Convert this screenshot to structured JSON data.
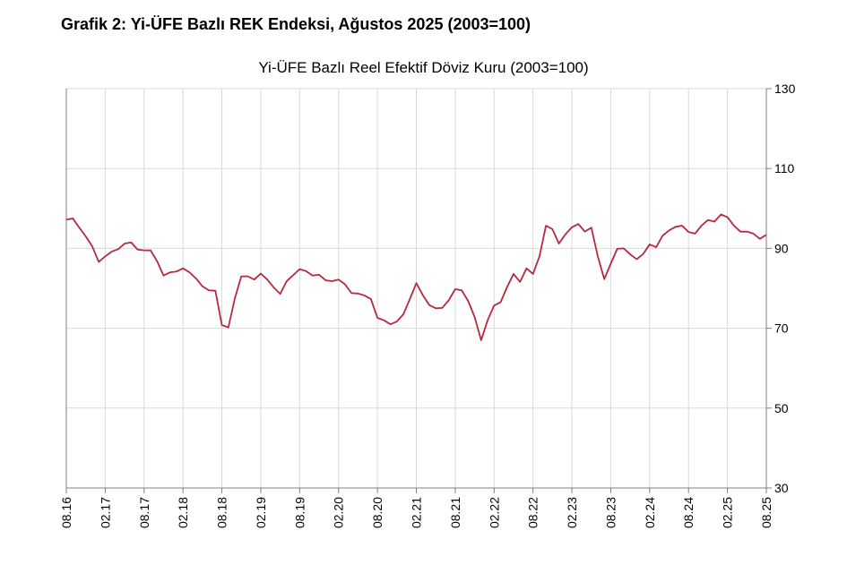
{
  "figure_title": "Grafik 2: Yi-ÜFE Bazlı REK Endeksi, Ağustos 2025 (2003=100)",
  "colors": {
    "series": "#b8283f",
    "grid": "#d9d9d9",
    "axis": "#808080"
  },
  "chart_data": {
    "type": "line",
    "title": "Yi-ÜFE Bazlı Reel Efektif Döviz Kuru (2003=100)",
    "xlabel": "",
    "ylabel": "",
    "ylim": [
      30,
      130
    ],
    "y_ticks": [
      30,
      50,
      70,
      90,
      110,
      130
    ],
    "y_axis_position": "right",
    "grid": true,
    "legend": "none",
    "x_tick_labels": [
      "08.16",
      "02.17",
      "08.17",
      "02.18",
      "08.18",
      "02.19",
      "08.19",
      "02.20",
      "08.20",
      "02.21",
      "08.21",
      "02.22",
      "08.22",
      "02.23",
      "08.23",
      "02.24",
      "08.24",
      "02.25",
      "08.25"
    ],
    "x_start": "08.16",
    "x_end": "08.25",
    "series": [
      {
        "values": [
          97.2,
          97.5,
          95.2,
          93.0,
          90.5,
          86.6,
          88.0,
          89.2,
          89.8,
          91.2,
          91.5,
          89.7,
          89.5,
          89.5,
          86.8,
          83.2,
          84.0,
          84.2,
          85.0,
          84.0,
          82.5,
          80.5,
          79.5,
          79.4,
          70.8,
          70.2,
          77.5,
          83.0,
          83.0,
          82.2,
          83.7,
          82.2,
          80.2,
          78.6,
          81.8,
          83.3,
          84.8,
          84.3,
          83.2,
          83.4,
          82.0,
          81.8,
          82.2,
          81.0,
          78.8,
          78.7,
          78.2,
          77.3,
          72.6,
          72.0,
          71.0,
          71.7,
          73.5,
          77.3,
          81.3,
          78.3,
          75.8,
          75.0,
          75.1,
          77.0,
          79.8,
          79.5,
          76.8,
          72.8,
          67.0,
          72.0,
          75.7,
          76.5,
          80.3,
          83.6,
          81.6,
          85.0,
          83.6,
          88.0,
          95.7,
          94.8,
          91.2,
          93.5,
          95.3,
          96.1,
          94.2,
          95.2,
          88.0,
          82.3,
          86.2,
          89.9,
          90.0,
          88.5,
          87.3,
          88.6,
          91.0,
          90.3,
          93.2,
          94.5,
          95.4,
          95.7,
          94.1,
          93.7,
          95.7,
          97.1,
          96.7,
          98.5,
          97.8,
          95.7,
          94.2,
          94.2,
          93.7,
          92.4,
          93.4
        ]
      }
    ]
  }
}
